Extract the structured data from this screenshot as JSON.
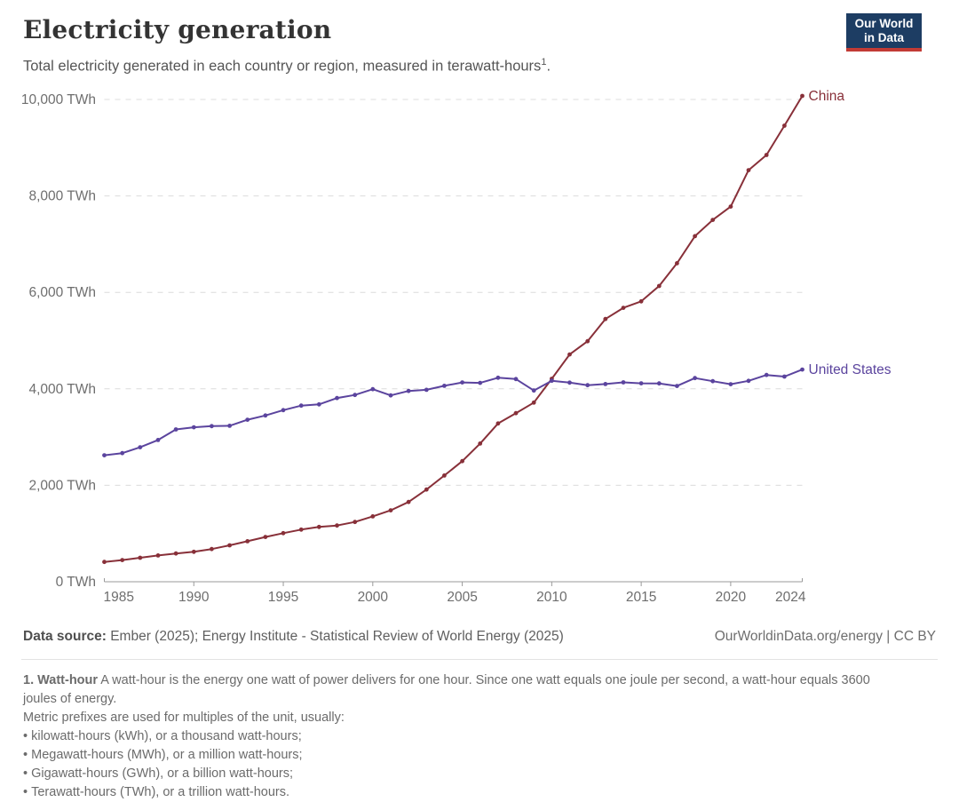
{
  "header": {
    "title": "Electricity generation",
    "subtitle_text": "Total electricity generated in each country or region, measured in terawatt-hours",
    "subtitle_sup": "1",
    "subtitle_suffix": ".",
    "logo_line1": "Our World",
    "logo_line2": "in Data",
    "logo_bg": "#1d3d63",
    "logo_accent": "#c23b35"
  },
  "chart_data": {
    "type": "line",
    "title": "Electricity generation",
    "unit": "TWh",
    "ylim": [
      0,
      10000
    ],
    "grid": "horizontal-dashed",
    "legend": "end-of-line-labels",
    "yticks": [
      0,
      2000,
      4000,
      6000,
      8000,
      10000
    ],
    "ytick_labels": [
      "0 TWh",
      "2,000 TWh",
      "4,000 TWh",
      "6,000 TWh",
      "8,000 TWh",
      "10,000 TWh"
    ],
    "xtick_years": [
      1985,
      1990,
      1995,
      2000,
      2005,
      2010,
      2015,
      2020,
      2024
    ],
    "x": [
      1985,
      1986,
      1987,
      1988,
      1989,
      1990,
      1991,
      1992,
      1993,
      1994,
      1995,
      1996,
      1997,
      1998,
      1999,
      2000,
      2001,
      2002,
      2003,
      2004,
      2005,
      2006,
      2007,
      2008,
      2009,
      2010,
      2011,
      2012,
      2013,
      2014,
      2015,
      2016,
      2017,
      2018,
      2019,
      2020,
      2021,
      2022,
      2023,
      2024
    ],
    "series": [
      {
        "name": "China",
        "color": "#883039",
        "values": [
          410.7,
          449.5,
          497.3,
          545.2,
          584.9,
          621.2,
          677.5,
          754.2,
          839.5,
          928.1,
          1007.0,
          1081.3,
          1135.6,
          1166.2,
          1239.3,
          1355.6,
          1480.9,
          1654.0,
          1910.7,
          2203.3,
          2500.3,
          2865.7,
          3281.6,
          3495.8,
          3714.7,
          4207.2,
          4713.0,
          4987.6,
          5447.2,
          5678.9,
          5814.6,
          6133.2,
          6604.0,
          7166.2,
          7503.4,
          7779.1,
          8534.3,
          8848.7,
          9456.2,
          10073.5
        ]
      },
      {
        "name": "United States",
        "color": "#5b449e",
        "values": [
          2621.9,
          2665.8,
          2787.6,
          2939.2,
          3157.9,
          3202.8,
          3225.9,
          3233.8,
          3359.7,
          3446.8,
          3558.5,
          3652.5,
          3678.6,
          3808.7,
          3873.2,
          3992.8,
          3864.5,
          3954.9,
          3979.9,
          4062.7,
          4133.1,
          4123.6,
          4229.7,
          4202.7,
          3965.7,
          4167.1,
          4129.8,
          4076.3,
          4099.2,
          4134.1,
          4113.3,
          4112.4,
          4058.4,
          4222.3,
          4158.5,
          4095.9,
          4165.4,
          4287.5,
          4254.0,
          4400.3
        ]
      }
    ]
  },
  "footer": {
    "source_label": "Data source:",
    "source_text": " Ember (2025); Energy Institute - Statistical Review of World Energy (2025)",
    "rights": "OurWorldinData.org/energy | CC BY"
  },
  "footnote": {
    "term": "1. Watt-hour",
    "definition": " A watt-hour is the energy one watt of power delivers for one hour. Since one watt equals one joule per second, a watt-hour equals 3600 joules of energy.",
    "intro": "Metric prefixes are used for multiples of the unit, usually:",
    "bullets": [
      "kilowatt-hours (kWh), or a thousand watt-hours;",
      "Megawatt-hours (MWh), or a million watt-hours;",
      "Gigawatt-hours (GWh), or a billion watt-hours;",
      "Terawatt-hours (TWh), or a trillion watt-hours."
    ]
  }
}
